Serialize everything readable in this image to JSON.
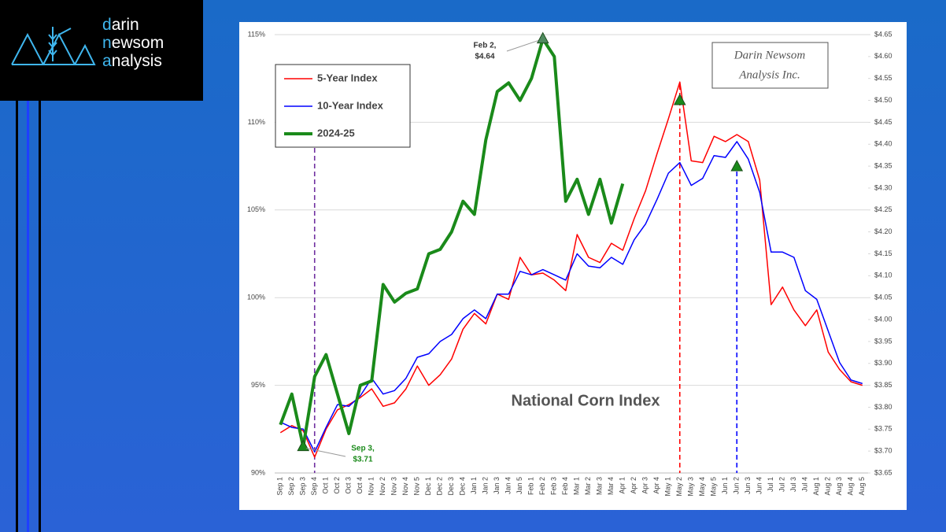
{
  "logo": {
    "lines": [
      "darin",
      "newsom",
      "analysis"
    ]
  },
  "chart_data": {
    "type": "line",
    "title": "National Corn Index",
    "watermark": [
      "Darin Newsom",
      "Analysis Inc."
    ],
    "annotations": [
      {
        "lines": [
          "Feb 2,",
          "$4.64"
        ]
      },
      {
        "lines": [
          "Sep 3,",
          "$3.71"
        ]
      }
    ],
    "categories": [
      "Sep 1",
      "Sep 2",
      "Sep 3",
      "Sep 4",
      "Oct 1",
      "Oct 2",
      "Oct 3",
      "Oct 4",
      "Nov 1",
      "Nov 2",
      "Nov 3",
      "Nov 4",
      "Nov 5",
      "Dec 1",
      "Dec 2",
      "Dec 3",
      "Dec 4",
      "Jan 1",
      "Jan 2",
      "Jan 3",
      "Jan 4",
      "Jan 5",
      "Feb 1",
      "Feb 2",
      "Feb 3",
      "Feb 4",
      "Mar 1",
      "Mar 2",
      "Mar 3",
      "Mar 4",
      "Apr 1",
      "Apr 2",
      "Apr 3",
      "Apr 4",
      "May 1",
      "May 2",
      "May 3",
      "May 4",
      "May 5",
      "Jun 1",
      "Jun 2",
      "Jun 3",
      "Jun 4",
      "Jul 1",
      "Jul 2",
      "Jul 3",
      "Jul 4",
      "Aug 1",
      "Aug 2",
      "Aug 3",
      "Aug 4",
      "Aug 5"
    ],
    "series": [
      {
        "name": "5-Year Index",
        "color": "#ff0000",
        "width": 1.5,
        "values": [
          92.3,
          92.7,
          92.4,
          90.9,
          92.5,
          93.6,
          93.9,
          94.3,
          94.8,
          93.8,
          94.0,
          94.8,
          96.1,
          95.0,
          95.6,
          96.5,
          98.2,
          99.1,
          98.5,
          100.2,
          99.9,
          102.3,
          101.3,
          101.4,
          101.0,
          100.4,
          103.6,
          102.3,
          102.0,
          103.1,
          102.7,
          104.5,
          106.1,
          108.2,
          110.2,
          112.3,
          107.8,
          107.7,
          109.2,
          108.9,
          109.3,
          108.9,
          106.7,
          99.6,
          100.6,
          99.3,
          98.4,
          99.3,
          96.9,
          95.9,
          95.2,
          95.0
        ]
      },
      {
        "name": "10-Year Index",
        "color": "#0000ff",
        "width": 1.5,
        "values": [
          92.9,
          92.6,
          92.5,
          91.2,
          92.6,
          93.9,
          93.8,
          94.4,
          95.4,
          94.5,
          94.7,
          95.4,
          96.6,
          96.8,
          97.5,
          97.9,
          98.8,
          99.3,
          98.8,
          100.2,
          100.2,
          101.5,
          101.3,
          101.6,
          101.3,
          101.0,
          102.5,
          101.8,
          101.7,
          102.3,
          101.9,
          103.3,
          104.2,
          105.6,
          107.1,
          107.7,
          106.4,
          106.8,
          108.1,
          108.0,
          108.9,
          107.9,
          106.0,
          102.6,
          102.6,
          102.3,
          100.4,
          99.9,
          98.1,
          96.3,
          95.3,
          95.1
        ]
      },
      {
        "name": "2024-25",
        "color": "#1a8a1a",
        "width": 4,
        "axis": "y2",
        "values": [
          3.76,
          3.83,
          3.71,
          3.87,
          3.92,
          3.83,
          3.74,
          3.85,
          3.86,
          4.08,
          4.04,
          4.06,
          4.07,
          4.15,
          4.16,
          4.2,
          4.27,
          4.24,
          4.41,
          4.52,
          4.54,
          4.5,
          4.55,
          4.64,
          4.6,
          4.27,
          4.32,
          4.24,
          4.32,
          4.22,
          4.31,
          null,
          null,
          null,
          null,
          null,
          null,
          null,
          null,
          null,
          null,
          null,
          null,
          null,
          null,
          null,
          null,
          null,
          null,
          null,
          null,
          null
        ]
      }
    ],
    "ylim": [
      90,
      115
    ],
    "yticks": [
      {
        "value": 90,
        "label": "90%"
      },
      {
        "value": 95,
        "label": "95%"
      },
      {
        "value": 100,
        "label": "100%"
      },
      {
        "value": 105,
        "label": "105%"
      },
      {
        "value": 110,
        "label": "110%"
      },
      {
        "value": 115,
        "label": "115%"
      }
    ],
    "y2lim": [
      3.65,
      4.65
    ],
    "y2ticks": [
      {
        "value": 3.65,
        "label": "$3.65"
      },
      {
        "value": 3.7,
        "label": "$3.70"
      },
      {
        "value": 3.75,
        "label": "$3.75"
      },
      {
        "value": 3.8,
        "label": "$3.80"
      },
      {
        "value": 3.85,
        "label": "$3.85"
      },
      {
        "value": 3.9,
        "label": "$3.90"
      },
      {
        "value": 3.95,
        "label": "$3.95"
      },
      {
        "value": 4.0,
        "label": "$4.00"
      },
      {
        "value": 4.05,
        "label": "$4.05"
      },
      {
        "value": 4.1,
        "label": "$4.10"
      },
      {
        "value": 4.15,
        "label": "$4.15"
      },
      {
        "value": 4.2,
        "label": "$4.20"
      },
      {
        "value": 4.25,
        "label": "$4.25"
      },
      {
        "value": 4.3,
        "label": "$4.30"
      },
      {
        "value": 4.35,
        "label": "$4.35"
      },
      {
        "value": 4.4,
        "label": "$4.40"
      },
      {
        "value": 4.45,
        "label": "$4.45"
      },
      {
        "value": 4.5,
        "label": "$4.50"
      },
      {
        "value": 4.55,
        "label": "$4.55"
      },
      {
        "value": 4.6,
        "label": "$4.60"
      },
      {
        "value": 4.65,
        "label": "$4.65"
      }
    ],
    "grid": true,
    "legend": "top-left"
  }
}
